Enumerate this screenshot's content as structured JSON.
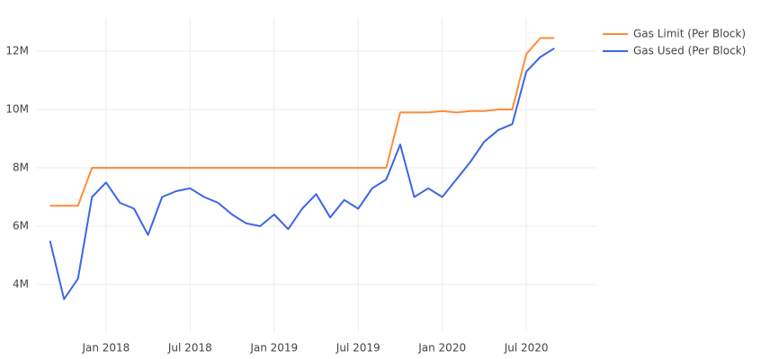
{
  "chart_data": {
    "type": "line",
    "x": [
      "2017-09",
      "2017-10",
      "2017-11",
      "2017-12",
      "2018-01",
      "2018-02",
      "2018-03",
      "2018-04",
      "2018-05",
      "2018-06",
      "2018-07",
      "2018-08",
      "2018-09",
      "2018-10",
      "2018-11",
      "2018-12",
      "2019-01",
      "2019-02",
      "2019-03",
      "2019-04",
      "2019-05",
      "2019-06",
      "2019-07",
      "2019-08",
      "2019-09",
      "2019-10",
      "2019-11",
      "2019-12",
      "2020-01",
      "2020-02",
      "2020-03",
      "2020-04",
      "2020-05",
      "2020-06",
      "2020-07",
      "2020-08",
      "2020-09"
    ],
    "series": [
      {
        "name": "Gas Limit (Per Block)",
        "color": "#fd8c3c",
        "values": [
          6700000,
          6700000,
          6700000,
          8000000,
          8000000,
          8000000,
          8000000,
          8000000,
          8000000,
          8000000,
          8000000,
          8000000,
          8000000,
          8000000,
          8000000,
          8000000,
          8000000,
          8000000,
          8000000,
          8000000,
          8000000,
          8000000,
          8000000,
          8000000,
          8000000,
          9900000,
          9900000,
          9900000,
          9950000,
          9900000,
          9950000,
          9950000,
          10000000,
          10000000,
          11900000,
          12450000,
          12450000
        ]
      },
      {
        "name": "Gas Used (Per Block)",
        "color": "#3a66e8",
        "values": [
          5500000,
          3500000,
          4200000,
          7000000,
          7500000,
          6800000,
          6600000,
          5700000,
          7000000,
          7200000,
          7300000,
          7000000,
          6800000,
          6400000,
          6100000,
          6000000,
          6400000,
          5900000,
          6600000,
          7100000,
          6300000,
          6900000,
          6600000,
          7300000,
          7600000,
          8800000,
          7000000,
          7300000,
          7000000,
          7600000,
          8200000,
          8900000,
          9300000,
          9500000,
          11300000,
          11800000,
          12100000
        ]
      }
    ],
    "xlim": [
      "2017-08",
      "2020-12"
    ],
    "xticks": [
      {
        "value": "2018-01",
        "label": "Jan 2018"
      },
      {
        "value": "2018-07",
        "label": "Jul 2018"
      },
      {
        "value": "2019-01",
        "label": "Jan 2019"
      },
      {
        "value": "2019-07",
        "label": "Jul 2019"
      },
      {
        "value": "2020-01",
        "label": "Jan 2020"
      },
      {
        "value": "2020-07",
        "label": "Jul 2020"
      }
    ],
    "ylim": [
      2370000,
      13140000
    ],
    "yticks": [
      {
        "value": 4000000,
        "label": "4M"
      },
      {
        "value": 6000000,
        "label": "6M"
      },
      {
        "value": 8000000,
        "label": "8M"
      },
      {
        "value": 10000000,
        "label": "10M"
      },
      {
        "value": 12000000,
        "label": "12M"
      }
    ],
    "grid": true
  }
}
